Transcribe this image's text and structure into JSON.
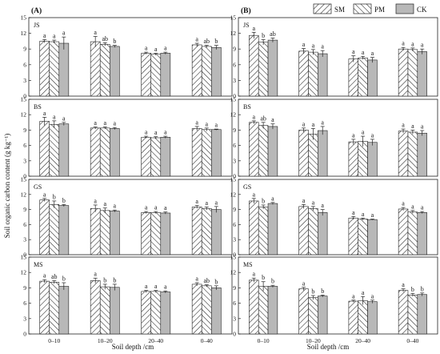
{
  "chart_data": {
    "type": "bar",
    "ylabel": "Soil organic carbon content (g kg⁻¹)",
    "xlabel": "Soil depth /cm",
    "categories": [
      "0–10",
      "10–20",
      "20–40",
      "0–40"
    ],
    "yticks": [
      "0",
      "3",
      "6",
      "9",
      "12",
      "15"
    ],
    "ylim": [
      0,
      15
    ],
    "legend": {
      "position": "top-right",
      "entries": [
        {
          "name": "SM",
          "pattern": "forward-hatch"
        },
        {
          "name": "PM",
          "pattern": "back-hatch"
        },
        {
          "name": "CK",
          "pattern": "solid-gray"
        }
      ]
    },
    "column_labels": [
      "(A)",
      "(B)"
    ],
    "row_labels": [
      "JS",
      "BS",
      "GS",
      "MS"
    ],
    "panels": [
      {
        "column": "(A)",
        "site": "JS",
        "series": [
          {
            "name": "SM",
            "values": [
              10.5,
              10.4,
              8.2,
              9.8
            ],
            "errors": [
              0.3,
              1.0,
              0.2,
              0.3
            ],
            "letters": [
              "a",
              "a",
              "a",
              "a"
            ]
          },
          {
            "name": "PM",
            "values": [
              10.4,
              9.9,
              8.0,
              9.5
            ],
            "errors": [
              0.3,
              0.3,
              0.2,
              0.2
            ],
            "letters": [
              "a",
              "ab",
              "a",
              "ab"
            ]
          },
          {
            "name": "CK",
            "values": [
              10.1,
              9.5,
              8.2,
              9.3
            ],
            "errors": [
              1.2,
              0.2,
              0.2,
              0.4
            ],
            "letters": [
              "a",
              "b",
              "a",
              "b"
            ]
          }
        ]
      },
      {
        "column": "(A)",
        "site": "BS",
        "series": [
          {
            "name": "SM",
            "values": [
              10.7,
              9.4,
              7.6,
              9.3
            ],
            "errors": [
              0.8,
              0.2,
              0.2,
              0.4
            ],
            "letters": [
              "a",
              "a",
              "a",
              "a"
            ]
          },
          {
            "name": "PM",
            "values": [
              10.1,
              9.4,
              7.5,
              9.1
            ],
            "errors": [
              0.7,
              0.2,
              0.2,
              0.3
            ],
            "letters": [
              "a",
              "a",
              "a",
              "a"
            ]
          },
          {
            "name": "CK",
            "values": [
              10.2,
              9.3,
              7.6,
              9.1
            ],
            "errors": [
              0.3,
              0.2,
              0.2,
              0.1
            ],
            "letters": [
              "a",
              "a",
              "a",
              "a"
            ]
          }
        ]
      },
      {
        "column": "(A)",
        "site": "GS",
        "series": [
          {
            "name": "SM",
            "values": [
              10.9,
              9.2,
              8.4,
              9.5
            ],
            "errors": [
              0.3,
              0.7,
              0.2,
              0.3
            ],
            "letters": [
              "a",
              "a",
              "a",
              "a"
            ]
          },
          {
            "name": "PM",
            "values": [
              10.0,
              8.8,
              8.4,
              9.2
            ],
            "errors": [
              0.7,
              0.5,
              0.2,
              0.3
            ],
            "letters": [
              "b",
              "a",
              "a",
              "a"
            ]
          },
          {
            "name": "CK",
            "values": [
              9.8,
              8.7,
              8.3,
              9.0
            ],
            "errors": [
              0.2,
              0.2,
              0.2,
              0.6
            ],
            "letters": [
              "b",
              "a",
              "a",
              "a"
            ]
          }
        ]
      },
      {
        "column": "(A)",
        "site": "MS",
        "series": [
          {
            "name": "SM",
            "values": [
              10.3,
              10.4,
              8.3,
              9.7
            ],
            "errors": [
              0.3,
              0.5,
              0.2,
              0.3
            ],
            "letters": [
              "a",
              "a",
              "a",
              "a"
            ]
          },
          {
            "name": "PM",
            "values": [
              10.1,
              9.2,
              8.3,
              9.4
            ],
            "errors": [
              0.3,
              0.5,
              0.2,
              0.2
            ],
            "letters": [
              "ab",
              "b",
              "a",
              "ab"
            ]
          },
          {
            "name": "CK",
            "values": [
              9.3,
              9.1,
              8.2,
              9.0
            ],
            "errors": [
              0.7,
              0.6,
              0.2,
              0.4
            ],
            "letters": [
              "b",
              "b",
              "a",
              "b"
            ]
          }
        ]
      },
      {
        "column": "(B)",
        "site": "JS",
        "series": [
          {
            "name": "SM",
            "values": [
              11.6,
              8.6,
              7.1,
              9.0
            ],
            "errors": [
              0.6,
              0.5,
              0.6,
              0.3
            ],
            "letters": [
              "a",
              "a",
              "a",
              "a"
            ]
          },
          {
            "name": "PM",
            "values": [
              10.3,
              8.4,
              7.3,
              8.9
            ],
            "errors": [
              0.5,
              0.5,
              0.3,
              0.3
            ],
            "letters": [
              "b",
              "a",
              "a",
              "a"
            ]
          },
          {
            "name": "CK",
            "values": [
              10.7,
              8.1,
              6.9,
              8.5
            ],
            "errors": [
              0.4,
              0.6,
              0.5,
              0.5
            ],
            "letters": [
              "ab",
              "a",
              "a",
              "a"
            ]
          }
        ]
      },
      {
        "column": "(B)",
        "site": "BS",
        "series": [
          {
            "name": "SM",
            "values": [
              10.5,
              9.0,
              6.7,
              8.8
            ],
            "errors": [
              0.3,
              0.4,
              0.5,
              0.4
            ],
            "letters": [
              "a",
              "a",
              "a",
              "a"
            ]
          },
          {
            "name": "PM",
            "values": [
              9.9,
              8.2,
              6.8,
              8.6
            ],
            "errors": [
              0.6,
              1.1,
              1.0,
              0.4
            ],
            "letters": [
              "ab",
              "a",
              "a",
              "a"
            ]
          },
          {
            "name": "CK",
            "values": [
              9.7,
              8.9,
              6.6,
              8.4
            ],
            "errors": [
              0.5,
              0.8,
              0.6,
              0.5
            ],
            "letters": [
              "a",
              "a",
              "a",
              "a"
            ]
          }
        ]
      },
      {
        "column": "(B)",
        "site": "GS",
        "series": [
          {
            "name": "SM",
            "values": [
              10.7,
              9.6,
              7.3,
              9.1
            ],
            "errors": [
              0.5,
              0.4,
              0.3,
              0.3
            ],
            "letters": [
              "a",
              "a",
              "a",
              "a"
            ]
          },
          {
            "name": "PM",
            "values": [
              9.5,
              9.2,
              7.1,
              8.5
            ],
            "errors": [
              0.4,
              0.4,
              0.2,
              0.3
            ],
            "letters": [
              "b",
              "a",
              "a",
              "a"
            ]
          },
          {
            "name": "CK",
            "values": [
              10.2,
              8.4,
              7.0,
              8.4
            ],
            "errors": [
              0.2,
              0.6,
              0.1,
              0.2
            ],
            "letters": [
              "a",
              "a",
              "a",
              "a"
            ]
          }
        ]
      },
      {
        "column": "(B)",
        "site": "MS",
        "series": [
          {
            "name": "SM",
            "values": [
              10.5,
              8.8,
              6.4,
              8.5
            ],
            "errors": [
              0.4,
              0.3,
              0.2,
              0.3
            ],
            "letters": [
              "a",
              "a",
              "a",
              "a"
            ]
          },
          {
            "name": "PM",
            "values": [
              9.3,
              7.1,
              6.5,
              7.6
            ],
            "errors": [
              0.9,
              0.4,
              0.8,
              0.3
            ],
            "letters": [
              "b",
              "b",
              "a",
              "b"
            ]
          },
          {
            "name": "CK",
            "values": [
              9.3,
              7.4,
              6.3,
              7.7
            ],
            "errors": [
              0.2,
              0.2,
              0.3,
              0.3
            ],
            "letters": [
              "b",
              "b",
              "a",
              "b"
            ]
          }
        ]
      }
    ]
  }
}
